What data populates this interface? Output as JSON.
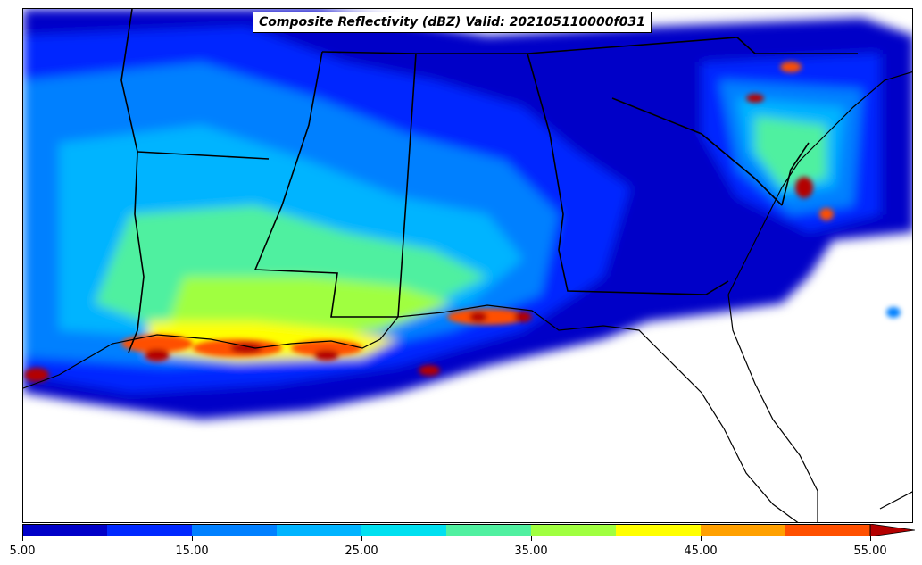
{
  "title": "Composite Reflectivity (dBZ) Valid: 202105110000f031",
  "colorbar": {
    "colors": [
      "#0000c8",
      "#0028ff",
      "#0080ff",
      "#00b4ff",
      "#00e0f0",
      "#50f0a0",
      "#a0ff40",
      "#ffff00",
      "#ffa000",
      "#ff5000",
      "#ff2000",
      "#b40000"
    ],
    "levels": [
      5,
      10,
      15,
      20,
      25,
      30,
      35,
      40,
      45,
      50,
      55
    ],
    "tick_labels": [
      "5.00",
      "15.00",
      "25.00",
      "35.00",
      "45.00",
      "55.00"
    ],
    "extend": "max"
  },
  "legend_placement": "bottom"
}
